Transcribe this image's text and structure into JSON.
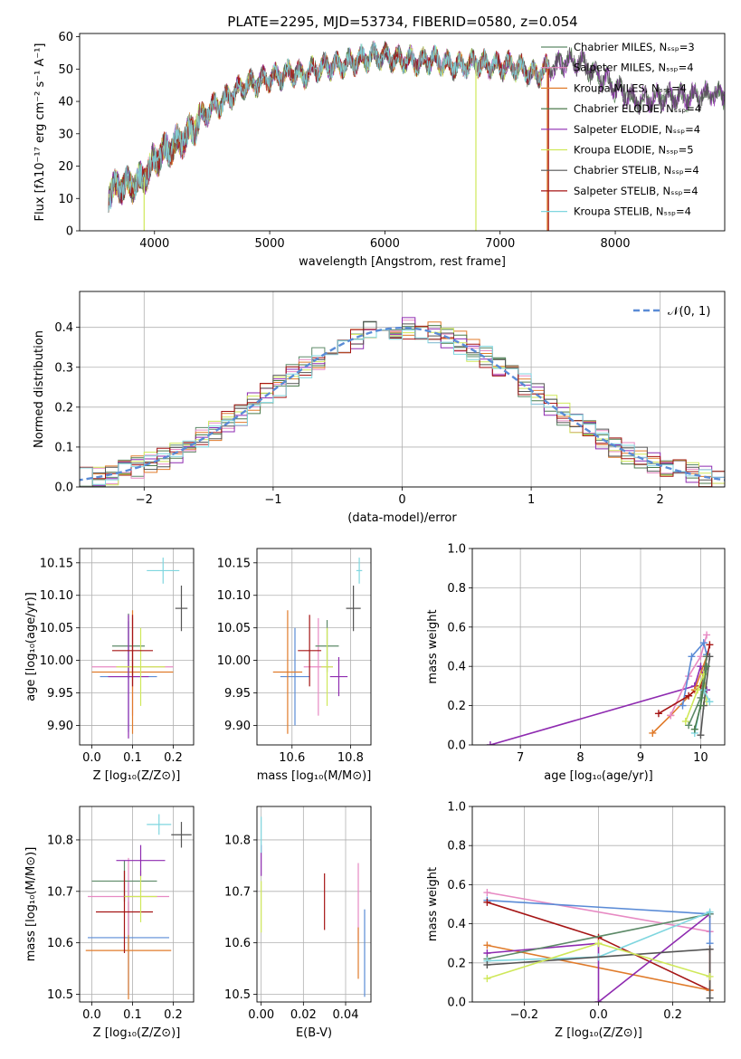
{
  "figure": {
    "title": "PLATE=2295, MJD=53734, FIBERID=0580, z=0.054"
  },
  "colors": {
    "Chabrier MILES": "#5d8a68",
    "Salpeter MILES": "#e78ac3",
    "Kroupa MILES": "#e07b2b",
    "Chabrier ELODIE": "#4b7a4b",
    "Salpeter ELODIE": "#8e2ab0",
    "Kroupa ELODIE": "#cfe85a",
    "Chabrier STELIB": "#555555",
    "Salpeter STELIB": "#a51515",
    "Kroupa STELIB": "#7fd6df",
    "blue": "#5a8bd6"
  },
  "chart_data": [
    {
      "id": "spectrum",
      "type": "line",
      "title": "PLATE=2295, MJD=53734, FIBERID=0580, z=0.054",
      "xlabel": "wavelength [Angstrom, rest frame]",
      "ylabel": "Flux [fλ10⁻¹⁷ erg cm⁻² s⁻¹ A⁻¹]",
      "xlim": [
        3350,
        8950
      ],
      "ylim": [
        0,
        61
      ],
      "xticks": [
        4000,
        5000,
        6000,
        7000,
        8000
      ],
      "yticks": [
        0,
        10,
        20,
        30,
        40,
        50,
        60
      ],
      "grid": false,
      "legend_position": "upper right",
      "legend": [
        "Chabrier MILES, Nₛₛₚ=3",
        "Salpeter MILES, Nₛₛₚ=4",
        "Kroupa MILES, Nₛₛₚ=4",
        "Chabrier ELODIE, Nₛₛₚ=4",
        "Salpeter ELODIE, Nₛₛₚ=4",
        "Kroupa ELODIE, Nₛₛₚ=5",
        "Chabrier STELIB, Nₛₛₚ=4",
        "Salpeter STELIB, Nₛₛₚ=4",
        "Kroupa STELIB, Nₛₛₚ=4"
      ],
      "series_color_keys": [
        "Chabrier MILES",
        "Salpeter MILES",
        "Kroupa MILES",
        "Chabrier ELODIE",
        "Salpeter ELODIE",
        "Kroupa ELODIE",
        "Chabrier STELIB",
        "Salpeter STELIB",
        "Kroupa STELIB"
      ],
      "continuum_x": [
        3600,
        3700,
        3800,
        3900,
        4000,
        4100,
        4200,
        4300,
        4400,
        4500,
        4600,
        4700,
        4800,
        4900,
        5000,
        5100,
        5200,
        5300,
        5400,
        5500,
        5600,
        5700,
        5800,
        5900,
        6000,
        6100,
        6200,
        6300,
        6400,
        6500,
        6600,
        6700,
        6800,
        6900,
        7000,
        7100,
        7200,
        7300,
        7400,
        7500,
        7600,
        7700,
        7800,
        7900,
        8000,
        8100,
        8200,
        8300,
        8400,
        8500,
        8600,
        8700,
        8800
      ],
      "continuum_y": [
        12,
        14,
        14,
        16,
        22,
        25,
        27,
        30,
        35,
        38,
        40,
        43,
        45,
        46,
        47,
        48,
        49,
        48,
        50,
        51,
        51,
        52,
        53,
        54,
        54,
        53,
        53,
        52,
        53,
        52,
        51,
        51,
        52,
        51,
        51,
        51,
        50,
        48,
        50,
        51,
        53,
        52,
        49,
        47,
        44,
        42,
        40,
        41,
        41,
        42,
        41,
        42,
        42
      ],
      "ends_x": [
        7430,
        7430,
        7430,
        8980,
        8980,
        7430,
        8980,
        7430,
        7430
      ],
      "artifacts": [
        {
          "x": 3910,
          "color_key": "Kroupa ELODIE"
        },
        {
          "x": 6790,
          "color_key": "Kroupa ELODIE"
        },
        {
          "x": 7410,
          "color_key": "Kroupa MILES"
        },
        {
          "x": 7420,
          "color_key": "Salpeter STELIB"
        }
      ]
    },
    {
      "id": "residuals",
      "type": "area",
      "xlabel": "(data-model)/error",
      "ylabel": "Normed distribution",
      "xlim": [
        -2.5,
        2.5
      ],
      "ylim": [
        0,
        0.49
      ],
      "xticks": [
        -2,
        -1,
        0,
        1,
        2
      ],
      "yticks": [
        0.0,
        0.1,
        0.2,
        0.3,
        0.4
      ],
      "grid": true,
      "legend": [
        "𝒩(0, 1)"
      ],
      "legend_position": "upper right",
      "gaussian": {
        "mean": 0,
        "sigma": 1
      },
      "bin_width": 0.1,
      "series_color_keys": [
        "Chabrier MILES",
        "Salpeter MILES",
        "Kroupa MILES",
        "Chabrier ELODIE",
        "Salpeter ELODIE",
        "Kroupa ELODIE",
        "Chabrier STELIB",
        "Salpeter STELIB",
        "Kroupa STELIB"
      ]
    },
    {
      "id": "age-vs-Z",
      "type": "scatter",
      "xlabel": "Z [log₁₀(Z/Z⊙)]",
      "ylabel": "age  [log₁₀(age/yr)]",
      "xlim": [
        -0.03,
        0.25
      ],
      "ylim": [
        9.87,
        10.172
      ],
      "xticks": [
        0.0,
        0.1,
        0.2
      ],
      "yticks": [
        9.9,
        9.95,
        10.0,
        10.05,
        10.1,
        10.15
      ],
      "grid": true,
      "points": [
        {
          "color_key": "blue",
          "x": 0.09,
          "y": 9.975,
          "xerr": 0.07,
          "yerr": 0.085
        },
        {
          "color_key": "Salpeter MILES",
          "x": 0.1,
          "y": 9.99,
          "xerr": 0.1,
          "yerr": 0.075
        },
        {
          "color_key": "Kroupa MILES",
          "x": 0.1,
          "y": 9.982,
          "xerr": 0.1,
          "yerr": 0.095
        },
        {
          "color_key": "Chabrier MILES",
          "x": 0.09,
          "y": 10.022,
          "xerr": 0.04,
          "yerr": 0.05
        },
        {
          "color_key": "Salpeter ELODIE",
          "x": 0.09,
          "y": 9.975,
          "xerr": 0.05,
          "yerr": 0.095
        },
        {
          "color_key": "Kroupa ELODIE",
          "x": 0.12,
          "y": 9.99,
          "xerr": 0.06,
          "yerr": 0.06
        },
        {
          "color_key": "Salpeter STELIB",
          "x": 0.1,
          "y": 10.015,
          "xerr": 0.05,
          "yerr": 0.055
        },
        {
          "color_key": "Chabrier STELIB",
          "x": 0.22,
          "y": 10.08,
          "xerr": 0.015,
          "yerr": 0.035
        },
        {
          "color_key": "Kroupa STELIB",
          "x": 0.175,
          "y": 10.138,
          "xerr": 0.04,
          "yerr": 0.02
        }
      ]
    },
    {
      "id": "age-vs-mass",
      "type": "scatter",
      "xlabel": "mass [log₁₀(M/M⊙)]",
      "xlim": [
        10.48,
        10.87
      ],
      "ylim": [
        9.87,
        10.172
      ],
      "xticks": [
        10.6,
        10.8
      ],
      "yticks": [
        9.9,
        9.95,
        10.0,
        10.05,
        10.1,
        10.15
      ],
      "grid": true,
      "points": [
        {
          "color_key": "blue",
          "x": 10.61,
          "y": 9.975,
          "xerr": 0.05,
          "yerr": 0.075
        },
        {
          "color_key": "Kroupa MILES",
          "x": 10.585,
          "y": 9.982,
          "xerr": 0.05,
          "yerr": 0.095
        },
        {
          "color_key": "Salpeter MILES",
          "x": 10.69,
          "y": 9.99,
          "xerr": 0.05,
          "yerr": 0.075
        },
        {
          "color_key": "Chabrier MILES",
          "x": 10.72,
          "y": 10.022,
          "xerr": 0.04,
          "yerr": 0.04
        },
        {
          "color_key": "Salpeter STELIB",
          "x": 10.66,
          "y": 10.015,
          "xerr": 0.04,
          "yerr": 0.055
        },
        {
          "color_key": "Kroupa ELODIE",
          "x": 10.72,
          "y": 9.99,
          "xerr": 0.02,
          "yerr": 0.06
        },
        {
          "color_key": "Salpeter ELODIE",
          "x": 10.76,
          "y": 9.975,
          "xerr": 0.03,
          "yerr": 0.03
        },
        {
          "color_key": "Chabrier STELIB",
          "x": 10.81,
          "y": 10.08,
          "xerr": 0.025,
          "yerr": 0.035
        },
        {
          "color_key": "Kroupa STELIB",
          "x": 10.83,
          "y": 10.138,
          "xerr": 0.01,
          "yerr": 0.02
        }
      ]
    },
    {
      "id": "weight-vs-age",
      "type": "line",
      "xlabel": "age  [log₁₀(age/yr)]",
      "ylabel": "mass weight",
      "xlim": [
        6.2,
        10.4
      ],
      "ylim": [
        0,
        1.0
      ],
      "xticks": [
        7,
        8,
        9,
        10
      ],
      "yticks": [
        0.0,
        0.2,
        0.4,
        0.6,
        0.8,
        1.0
      ],
      "grid": true,
      "series": [
        {
          "color_key": "Salpeter ELODIE",
          "x": [
            6.5,
            9.9,
            10.0,
            10.1
          ],
          "y": [
            0.0,
            0.3,
            0.4,
            0.28
          ]
        },
        {
          "color_key": "Kroupa MILES",
          "x": [
            9.2,
            9.5,
            9.9,
            10.1
          ],
          "y": [
            0.06,
            0.15,
            0.28,
            0.45
          ]
        },
        {
          "color_key": "Salpeter MILES",
          "x": [
            9.5,
            9.8,
            10.0,
            10.1
          ],
          "y": [
            0.15,
            0.35,
            0.45,
            0.56
          ]
        },
        {
          "color_key": "blue",
          "x": [
            9.7,
            9.85,
            10.05,
            10.1
          ],
          "y": [
            0.2,
            0.45,
            0.52,
            0.46
          ]
        },
        {
          "color_key": "Salpeter STELIB",
          "x": [
            9.3,
            9.8,
            10.0,
            10.15
          ],
          "y": [
            0.16,
            0.25,
            0.3,
            0.51
          ]
        },
        {
          "color_key": "Chabrier MILES",
          "x": [
            9.8,
            10.0,
            10.1
          ],
          "y": [
            0.1,
            0.24,
            0.45
          ]
        },
        {
          "color_key": "Kroupa ELODIE",
          "x": [
            9.75,
            9.95,
            10.05,
            10.1
          ],
          "y": [
            0.12,
            0.28,
            0.36,
            0.22
          ]
        },
        {
          "color_key": "Chabrier STELIB",
          "x": [
            10.0,
            10.05,
            10.15
          ],
          "y": [
            0.05,
            0.2,
            0.45
          ]
        },
        {
          "color_key": "Kroupa STELIB",
          "x": [
            9.9,
            10.05,
            10.15
          ],
          "y": [
            0.06,
            0.28,
            0.22
          ]
        },
        {
          "color_key": "Chabrier ELODIE",
          "x": [
            9.9,
            10.0,
            10.1
          ],
          "y": [
            0.08,
            0.2,
            0.4
          ]
        }
      ]
    },
    {
      "id": "mass-vs-Z",
      "type": "scatter",
      "xlabel": "Z [log₁₀(Z/Z⊙)]",
      "ylabel": "mass [log₁₀(M/M⊙)]",
      "xlim": [
        -0.03,
        0.25
      ],
      "ylim": [
        10.485,
        10.865
      ],
      "xticks": [
        0.0,
        0.1,
        0.2
      ],
      "yticks": [
        10.5,
        10.6,
        10.7,
        10.8
      ],
      "grid": true,
      "points": [
        {
          "color_key": "blue",
          "x": 0.09,
          "y": 10.61,
          "xerr": 0.1,
          "yerr": 0.11
        },
        {
          "color_key": "Kroupa MILES",
          "x": 0.09,
          "y": 10.585,
          "xerr": 0.105,
          "yerr": 0.095
        },
        {
          "color_key": "Salpeter MILES",
          "x": 0.09,
          "y": 10.69,
          "xerr": 0.1,
          "yerr": 0.075
        },
        {
          "color_key": "Chabrier MILES",
          "x": 0.08,
          "y": 10.72,
          "xerr": 0.08,
          "yerr": 0.04
        },
        {
          "color_key": "Salpeter STELIB",
          "x": 0.08,
          "y": 10.66,
          "xerr": 0.07,
          "yerr": 0.08
        },
        {
          "color_key": "Kroupa ELODIE",
          "x": 0.12,
          "y": 10.69,
          "xerr": 0.04,
          "yerr": 0.05
        },
        {
          "color_key": "Salpeter ELODIE",
          "x": 0.12,
          "y": 10.76,
          "xerr": 0.06,
          "yerr": 0.03
        },
        {
          "color_key": "Chabrier STELIB",
          "x": 0.22,
          "y": 10.81,
          "xerr": 0.025,
          "yerr": 0.025
        },
        {
          "color_key": "Kroupa STELIB",
          "x": 0.165,
          "y": 10.83,
          "xerr": 0.03,
          "yerr": 0.02
        }
      ]
    },
    {
      "id": "mass-vs-ebv",
      "type": "scatter",
      "xlabel": "E(B-V)",
      "xlim": [
        -0.002,
        0.052
      ],
      "ylim": [
        10.485,
        10.865
      ],
      "xticks": [
        0.0,
        0.02,
        0.04
      ],
      "yticks": [
        10.5,
        10.6,
        10.7,
        10.8
      ],
      "grid": true,
      "points": [
        {
          "color_key": "Kroupa ELODIE",
          "x": 0.0,
          "y": 10.67,
          "xerr": 0.0,
          "yerr": 0.05
        },
        {
          "color_key": "Salpeter ELODIE",
          "x": 0.0,
          "y": 10.76,
          "xerr": 0.0,
          "yerr": 0.03
        },
        {
          "color_key": "Kroupa STELIB",
          "x": 0.0,
          "y": 10.81,
          "xerr": 0.0,
          "yerr": 0.035
        },
        {
          "color_key": "Salpeter STELIB",
          "x": 0.03,
          "y": 10.68,
          "xerr": 0.0,
          "yerr": 0.055
        },
        {
          "color_key": "Salpeter MILES",
          "x": 0.046,
          "y": 10.68,
          "xerr": 0.0,
          "yerr": 0.075
        },
        {
          "color_key": "Kroupa MILES",
          "x": 0.046,
          "y": 10.58,
          "xerr": 0.0,
          "yerr": 0.05
        },
        {
          "color_key": "blue",
          "x": 0.049,
          "y": 10.58,
          "xerr": 0.0,
          "yerr": 0.085
        }
      ]
    },
    {
      "id": "weight-vs-Z",
      "type": "line",
      "xlabel": "Z [log₁₀(Z/Z⊙)]",
      "ylabel": "mass weight",
      "xlim": [
        -0.34,
        0.34
      ],
      "ylim": [
        0,
        1.0
      ],
      "xticks": [
        -0.2,
        0.0,
        0.2
      ],
      "yticks": [
        0.0,
        0.2,
        0.4,
        0.6,
        0.8,
        1.0
      ],
      "grid": true,
      "series": [
        {
          "color_key": "Salpeter MILES",
          "x": [
            -0.3,
            0.3,
            0.3
          ],
          "y": [
            0.56,
            0.36,
            0.45
          ]
        },
        {
          "color_key": "blue",
          "x": [
            -0.3,
            0.3,
            0.3
          ],
          "y": [
            0.52,
            0.45,
            0.3
          ]
        },
        {
          "color_key": "Salpeter STELIB",
          "x": [
            -0.3,
            0.0,
            0.3,
            0.3
          ],
          "y": [
            0.51,
            0.33,
            0.06,
            0.27
          ]
        },
        {
          "color_key": "Kroupa MILES",
          "x": [
            -0.3,
            0.3
          ],
          "y": [
            0.29,
            0.06
          ]
        },
        {
          "color_key": "Salpeter ELODIE",
          "x": [
            -0.3,
            0.0,
            0.0,
            0.3
          ],
          "y": [
            0.25,
            0.3,
            0.0,
            0.45
          ]
        },
        {
          "color_key": "Chabrier MILES",
          "x": [
            -0.3,
            0.3
          ],
          "y": [
            0.22,
            0.45
          ]
        },
        {
          "color_key": "Kroupa STELIB",
          "x": [
            -0.3,
            0.0,
            0.3
          ],
          "y": [
            0.21,
            0.23,
            0.46
          ]
        },
        {
          "color_key": "Chabrier STELIB",
          "x": [
            -0.3,
            0.3,
            0.3
          ],
          "y": [
            0.19,
            0.27,
            0.02
          ]
        },
        {
          "color_key": "Kroupa ELODIE",
          "x": [
            -0.3,
            0.0,
            0.3
          ],
          "y": [
            0.12,
            0.3,
            0.13
          ]
        }
      ]
    }
  ]
}
